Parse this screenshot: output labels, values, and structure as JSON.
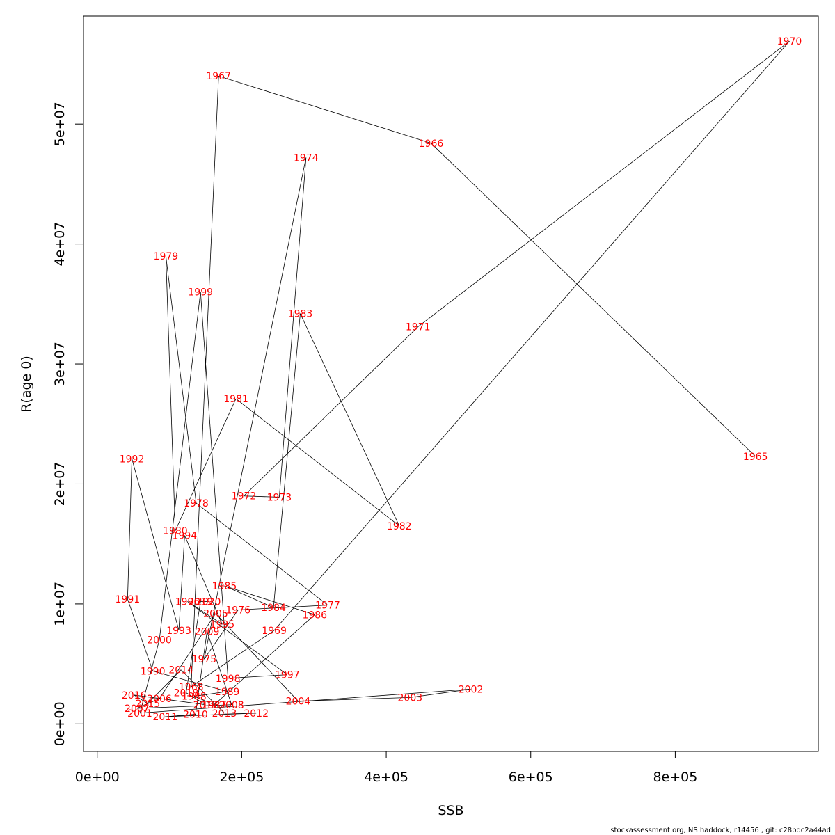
{
  "chart_data": {
    "type": "line",
    "title": "",
    "xlabel": "SSB",
    "ylabel": "R(age 0)",
    "xlim": [
      -19000,
      998000
    ],
    "ylim": [
      -2300000,
      59000000
    ],
    "x_ticks": [
      0,
      200000,
      400000,
      600000,
      800000
    ],
    "x_tick_labels": [
      "0e+00",
      "2e+05",
      "4e+05",
      "6e+05",
      "8e+05"
    ],
    "y_ticks": [
      0,
      10000000,
      20000000,
      30000000,
      40000000,
      50000000
    ],
    "y_tick_labels": [
      "0e+00",
      "1e+07",
      "2e+07",
      "3e+07",
      "4e+07",
      "5e+07"
    ],
    "grid": false,
    "line_color": "#000000",
    "label_color": "#ff0000",
    "points": [
      {
        "year": "1965",
        "ssb": 911000,
        "r": 22300000
      },
      {
        "year": "1966",
        "ssb": 462000,
        "r": 48400000
      },
      {
        "year": "1967",
        "ssb": 168000,
        "r": 54000000
      },
      {
        "year": "1968",
        "ssb": 130000,
        "r": 3100000
      },
      {
        "year": "1969",
        "ssb": 245000,
        "r": 7800000
      },
      {
        "year": "1970",
        "ssb": 958000,
        "r": 56900000
      },
      {
        "year": "1971",
        "ssb": 444000,
        "r": 33100000
      },
      {
        "year": "1972",
        "ssb": 203000,
        "r": 19000000
      },
      {
        "year": "1973",
        "ssb": 252000,
        "r": 18900000
      },
      {
        "year": "1974",
        "ssb": 289000,
        "r": 47200000
      },
      {
        "year": "1975",
        "ssb": 148000,
        "r": 5400000
      },
      {
        "year": "1976",
        "ssb": 195000,
        "r": 9500000
      },
      {
        "year": "1977",
        "ssb": 319000,
        "r": 9900000
      },
      {
        "year": "1978",
        "ssb": 137000,
        "r": 18400000
      },
      {
        "year": "1979",
        "ssb": 95000,
        "r": 39000000
      },
      {
        "year": "1980",
        "ssb": 108000,
        "r": 16100000
      },
      {
        "year": "1981",
        "ssb": 192000,
        "r": 27100000
      },
      {
        "year": "1982",
        "ssb": 418000,
        "r": 16500000
      },
      {
        "year": "1983",
        "ssb": 281000,
        "r": 34200000
      },
      {
        "year": "1984",
        "ssb": 244000,
        "r": 9700000
      },
      {
        "year": "1985",
        "ssb": 176000,
        "r": 11500000
      },
      {
        "year": "1986",
        "ssb": 301000,
        "r": 9100000
      },
      {
        "year": "1987",
        "ssb": 162000,
        "r": 1600000
      },
      {
        "year": "1988",
        "ssb": 134000,
        "r": 2300000
      },
      {
        "year": "1989",
        "ssb": 180000,
        "r": 2700000
      },
      {
        "year": "1990",
        "ssb": 77000,
        "r": 4400000
      },
      {
        "year": "1991",
        "ssb": 42000,
        "r": 10400000
      },
      {
        "year": "1992",
        "ssb": 48000,
        "r": 22100000
      },
      {
        "year": "1993",
        "ssb": 113000,
        "r": 7800000
      },
      {
        "year": "1994",
        "ssb": 121000,
        "r": 15700000
      },
      {
        "year": "1995",
        "ssb": 173000,
        "r": 8300000
      },
      {
        "year": "1996",
        "ssb": 125000,
        "r": 10200000
      },
      {
        "year": "1997",
        "ssb": 263000,
        "r": 4100000
      },
      {
        "year": "1998",
        "ssb": 181000,
        "r": 3800000
      },
      {
        "year": "1999",
        "ssb": 143000,
        "r": 36000000
      },
      {
        "year": "2000",
        "ssb": 86000,
        "r": 7000000
      },
      {
        "year": "2001",
        "ssb": 59000,
        "r": 900000
      },
      {
        "year": "2002",
        "ssb": 517000,
        "r": 2900000
      },
      {
        "year": "2003",
        "ssb": 433000,
        "r": 2200000
      },
      {
        "year": "2004",
        "ssb": 278000,
        "r": 1900000
      },
      {
        "year": "2005",
        "ssb": 164000,
        "r": 9200000
      },
      {
        "year": "2006",
        "ssb": 86000,
        "r": 2100000
      },
      {
        "year": "2007",
        "ssb": 55000,
        "r": 1300000
      },
      {
        "year": "2008",
        "ssb": 186000,
        "r": 1600000
      },
      {
        "year": "2009",
        "ssb": 152000,
        "r": 7700000
      },
      {
        "year": "2010",
        "ssb": 136000,
        "r": 800000
      },
      {
        "year": "2011",
        "ssb": 94000,
        "r": 600000
      },
      {
        "year": "2012",
        "ssb": 220000,
        "r": 900000
      },
      {
        "year": "2013",
        "ssb": 176000,
        "r": 900000
      },
      {
        "year": "2014",
        "ssb": 116000,
        "r": 4500000
      },
      {
        "year": "2015",
        "ssb": 70000,
        "r": 1700000
      },
      {
        "year": "2016",
        "ssb": 51000,
        "r": 2400000
      },
      {
        "year": "2017",
        "ssb": 150000,
        "r": 1600000
      },
      {
        "year": "2018",
        "ssb": 123000,
        "r": 2600000
      },
      {
        "year": "2019",
        "ssb": 143000,
        "r": 10200000
      },
      {
        "year": "2020",
        "ssb": 154000,
        "r": 10200000
      }
    ]
  },
  "footer": "stockassessment.org, NS  haddock, r14456 , git: c28bdc2a44ad"
}
